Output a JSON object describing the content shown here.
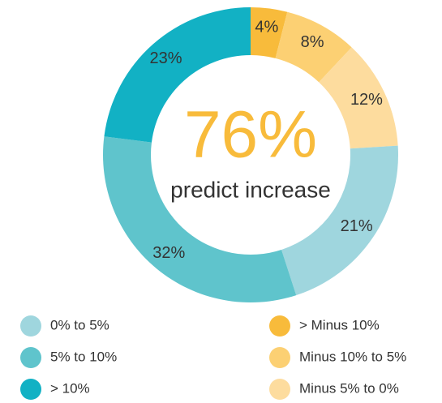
{
  "chart_data": {
    "type": "donut",
    "center_text": "76%",
    "center_subtext": "predict increase",
    "categories": [
      "> Minus 10%",
      "Minus 10% to 5%",
      "Minus 5% to 0%",
      "0% to 5%",
      "5% to 10%",
      "> 10%"
    ],
    "values": [
      4,
      8,
      12,
      21,
      32,
      23
    ],
    "value_labels": [
      "4%",
      "8%",
      "12%",
      "21%",
      "32%",
      "23%"
    ],
    "colors": [
      "#f8bb3b",
      "#fcd073",
      "#fddc9e",
      "#9fd6de",
      "#5fc4cc",
      "#12b1c4"
    ],
    "legend": "bottom"
  }
}
